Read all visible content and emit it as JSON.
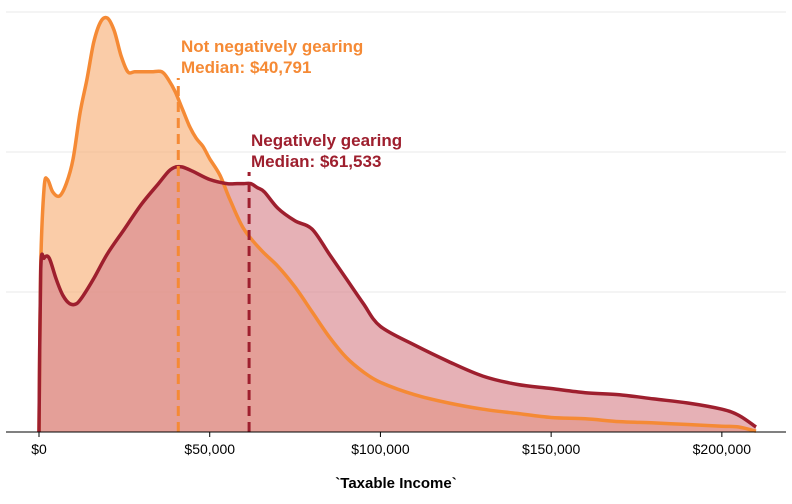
{
  "chart_data": {
    "type": "area",
    "xlabel": "`Taxable Income`",
    "ylabel": "",
    "xlim": [
      0,
      210000
    ],
    "x_ticks": [
      {
        "value": 0,
        "label": "$0"
      },
      {
        "value": 50000,
        "label": "$50,000"
      },
      {
        "value": 100000,
        "label": "$100,000"
      },
      {
        "value": 150000,
        "label": "$150,000"
      },
      {
        "value": 200000,
        "label": "$200,000"
      }
    ],
    "ylim": [
      0,
      1
    ],
    "grid": true,
    "series": [
      {
        "key": "not_ng",
        "color": "#f58a35",
        "fill": "#f7b07a",
        "x": [
          0,
          500,
          1500,
          2500,
          4000,
          6000,
          8000,
          10000,
          12000,
          14000,
          16000,
          18000,
          20000,
          22000,
          24000,
          26000,
          28000,
          30000,
          33000,
          36000,
          38000,
          40000,
          42000,
          44000,
          46000,
          48000,
          50000,
          53000,
          56000,
          60000,
          65000,
          70000,
          75000,
          80000,
          85000,
          90000,
          95000,
          100000,
          110000,
          120000,
          130000,
          140000,
          150000,
          160000,
          170000,
          180000,
          190000,
          200000,
          205000,
          210000
        ],
        "y": [
          0.0,
          0.4,
          0.59,
          0.61,
          0.58,
          0.57,
          0.6,
          0.66,
          0.77,
          0.85,
          0.94,
          0.99,
          1.0,
          0.97,
          0.91,
          0.87,
          0.87,
          0.87,
          0.87,
          0.87,
          0.85,
          0.82,
          0.78,
          0.74,
          0.71,
          0.69,
          0.66,
          0.62,
          0.56,
          0.49,
          0.44,
          0.4,
          0.35,
          0.29,
          0.23,
          0.18,
          0.145,
          0.12,
          0.09,
          0.07,
          0.055,
          0.045,
          0.035,
          0.032,
          0.025,
          0.022,
          0.018,
          0.014,
          0.012,
          0.002
        ]
      },
      {
        "key": "ng",
        "color": "#9e1f2e",
        "fill": "#d9878f",
        "x": [
          0,
          500,
          1500,
          3000,
          5000,
          7000,
          9000,
          11000,
          13000,
          16000,
          20000,
          25000,
          30000,
          35000,
          38000,
          40000,
          42000,
          45000,
          50000,
          55000,
          58000,
          60000,
          62000,
          64000,
          66000,
          70000,
          75000,
          80000,
          85000,
          90000,
          95000,
          100000,
          110000,
          120000,
          130000,
          140000,
          150000,
          160000,
          170000,
          180000,
          190000,
          200000,
          205000,
          210000
        ],
        "y": [
          0.0,
          0.39,
          0.42,
          0.42,
          0.37,
          0.33,
          0.31,
          0.31,
          0.33,
          0.37,
          0.43,
          0.49,
          0.55,
          0.6,
          0.63,
          0.64,
          0.64,
          0.63,
          0.61,
          0.6,
          0.6,
          0.6,
          0.6,
          0.59,
          0.58,
          0.54,
          0.51,
          0.49,
          0.43,
          0.37,
          0.31,
          0.255,
          0.21,
          0.17,
          0.135,
          0.115,
          0.105,
          0.095,
          0.09,
          0.08,
          0.07,
          0.055,
          0.04,
          0.012
        ]
      }
    ],
    "medians": [
      {
        "key": "not_ng",
        "value": 40791,
        "color": "#f58a35",
        "name": "Not negatively gearing",
        "label": "Median: $40,791"
      },
      {
        "key": "ng",
        "value": 61533,
        "color": "#9e1f2e",
        "name": "Negatively gearing",
        "label": "Median: $61,533"
      }
    ]
  }
}
